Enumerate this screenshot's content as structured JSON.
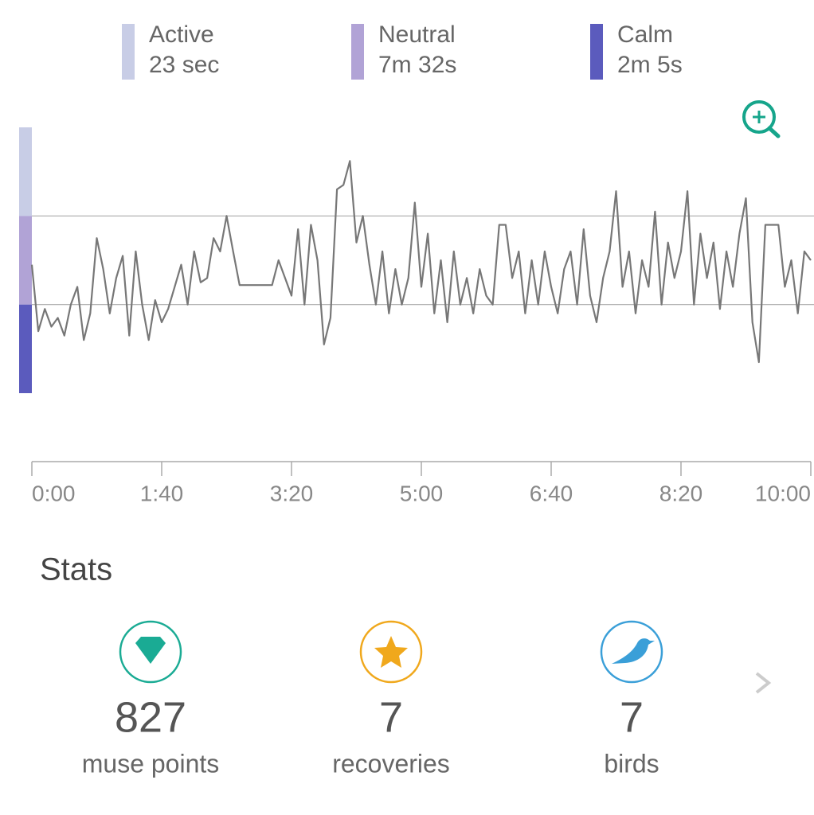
{
  "legend": [
    {
      "label": "Active",
      "value": "23 sec",
      "color": "#c8cde6",
      "range": [
        2,
        3
      ]
    },
    {
      "label": "Neutral",
      "value": "7m 32s",
      "color": "#b1a3d6",
      "range": [
        1,
        2
      ]
    },
    {
      "label": "Calm",
      "value": "2m 5s",
      "color": "#5b5bbd",
      "range": [
        0,
        1
      ]
    }
  ],
  "chart_data": {
    "type": "line",
    "x": [
      0,
      5,
      10,
      15,
      20,
      25,
      30,
      35,
      40,
      45,
      50,
      55,
      60,
      65,
      70,
      75,
      80,
      85,
      90,
      95,
      100,
      105,
      110,
      115,
      120,
      125,
      130,
      135,
      140,
      145,
      150,
      155,
      160,
      165,
      170,
      175,
      180,
      185,
      190,
      195,
      200,
      205,
      210,
      215,
      220,
      225,
      230,
      235,
      240,
      245,
      250,
      255,
      260,
      265,
      270,
      275,
      280,
      285,
      290,
      295,
      300,
      305,
      310,
      315,
      320,
      325,
      330,
      335,
      340,
      345,
      350,
      355,
      360,
      365,
      370,
      375,
      380,
      385,
      390,
      395,
      400,
      405,
      410,
      415,
      420,
      425,
      430,
      435,
      440,
      445,
      450,
      455,
      460,
      465,
      470,
      475,
      480,
      485,
      490,
      495,
      500,
      505,
      510,
      515,
      520,
      525,
      530,
      535,
      540,
      545,
      550,
      555,
      560,
      565,
      570,
      575,
      580,
      585,
      590,
      595,
      600
    ],
    "series": [
      {
        "color": "#777777",
        "values": [
          1.45,
          0.7,
          0.95,
          0.75,
          0.85,
          0.65,
          1.0,
          1.2,
          0.6,
          0.9,
          1.75,
          1.4,
          0.9,
          1.3,
          1.55,
          0.65,
          1.6,
          1.0,
          0.6,
          1.05,
          0.8,
          0.95,
          1.2,
          1.45,
          1.0,
          1.6,
          1.25,
          1.3,
          1.75,
          1.6,
          2.0,
          1.6,
          1.22,
          1.22,
          1.22,
          1.22,
          1.22,
          1.22,
          1.5,
          1.3,
          1.1,
          1.85,
          1.0,
          1.9,
          1.5,
          0.55,
          0.85,
          2.3,
          2.35,
          2.62,
          1.7,
          2.0,
          1.45,
          1.0,
          1.6,
          0.9,
          1.4,
          1.0,
          1.3,
          2.15,
          1.2,
          1.8,
          0.9,
          1.5,
          0.8,
          1.6,
          1.0,
          1.3,
          0.9,
          1.4,
          1.1,
          1.0,
          1.9,
          1.9,
          1.3,
          1.6,
          0.9,
          1.5,
          1.0,
          1.6,
          1.2,
          0.9,
          1.4,
          1.6,
          1.0,
          1.85,
          1.1,
          0.8,
          1.3,
          1.6,
          2.28,
          1.2,
          1.6,
          0.9,
          1.5,
          1.2,
          2.05,
          1.0,
          1.7,
          1.3,
          1.6,
          2.28,
          1.0,
          1.8,
          1.3,
          1.7,
          0.95,
          1.6,
          1.2,
          1.8,
          2.2,
          0.8,
          0.35,
          1.9,
          1.9,
          1.9,
          1.2,
          1.5,
          0.9,
          1.6,
          1.5
        ]
      }
    ],
    "xlim": [
      0,
      600
    ],
    "xticks": [
      {
        "value": 0,
        "label": "0:00"
      },
      {
        "value": 100,
        "label": "1:40"
      },
      {
        "value": 200,
        "label": "3:20"
      },
      {
        "value": 300,
        "label": "5:00"
      },
      {
        "value": 400,
        "label": "6:40"
      },
      {
        "value": 500,
        "label": "8:20"
      },
      {
        "value": 600,
        "label": "10:00"
      }
    ],
    "ylim": [
      0,
      3
    ],
    "ygrid": [
      1,
      2
    ]
  },
  "stats": {
    "title": "Stats",
    "items": [
      {
        "value": 827,
        "label": "muse points"
      },
      {
        "value": 7,
        "label": "recoveries"
      },
      {
        "value": 7,
        "label": "birds"
      }
    ]
  }
}
